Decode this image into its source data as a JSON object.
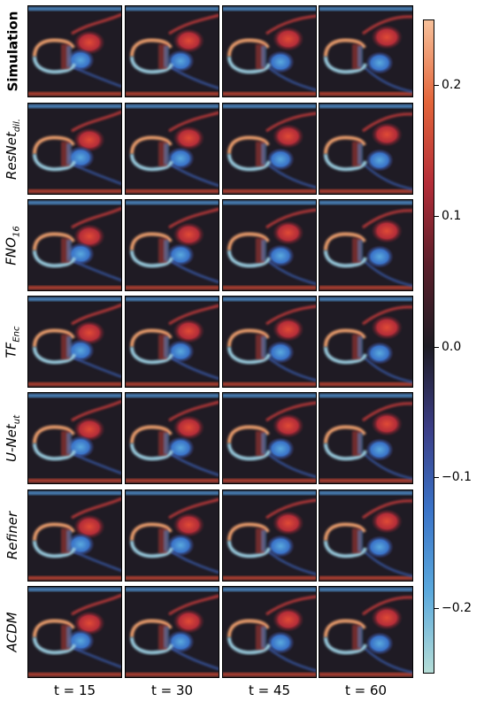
{
  "rows": [
    {
      "label": "Simulation",
      "bold": true
    },
    {
      "label": "ResNet",
      "sub": "dil."
    },
    {
      "label": "FNO",
      "sub": "16"
    },
    {
      "label": "TF",
      "sub": "Enc"
    },
    {
      "label": "U-Net",
      "sub": "ut"
    },
    {
      "label": "Refiner"
    },
    {
      "label": "ACDM"
    }
  ],
  "columns": [
    "t = 15",
    "t = 30",
    "t = 45",
    "t = 60"
  ],
  "colorbar": {
    "range": [
      -0.25,
      0.25
    ],
    "ticks": [
      {
        "value": 0.2,
        "label": "0.2"
      },
      {
        "value": 0.1,
        "label": "0.1"
      },
      {
        "value": 0.0,
        "label": "0.0"
      },
      {
        "value": -0.1,
        "label": "−0.1"
      },
      {
        "value": -0.2,
        "label": "−0.2"
      }
    ],
    "colors": [
      "#b5ddd7",
      "#5aa9dd",
      "#3a73c8",
      "#3b3d86",
      "#1e1c24",
      "#5a1e2a",
      "#b42d38",
      "#e3653a",
      "#f7c09a"
    ]
  },
  "chart_data": {
    "type": "heatmap",
    "title": "",
    "xlabel": "",
    "ylabel": "",
    "row_labels": [
      "Simulation",
      "ResNet_dil.",
      "FNO_16",
      "TF_Enc",
      "U-Net_ut",
      "Refiner",
      "ACDM"
    ],
    "column_labels": [
      "t = 15",
      "t = 30",
      "t = 45",
      "t = 60"
    ],
    "colorbar_range": [
      -0.25,
      0.25
    ],
    "colorbar_ticks": [
      -0.2,
      -0.1,
      0.0,
      0.1,
      0.2
    ],
    "colormap": "diverging icefire (light cyan → blue → dark → red → light orange)"
  }
}
